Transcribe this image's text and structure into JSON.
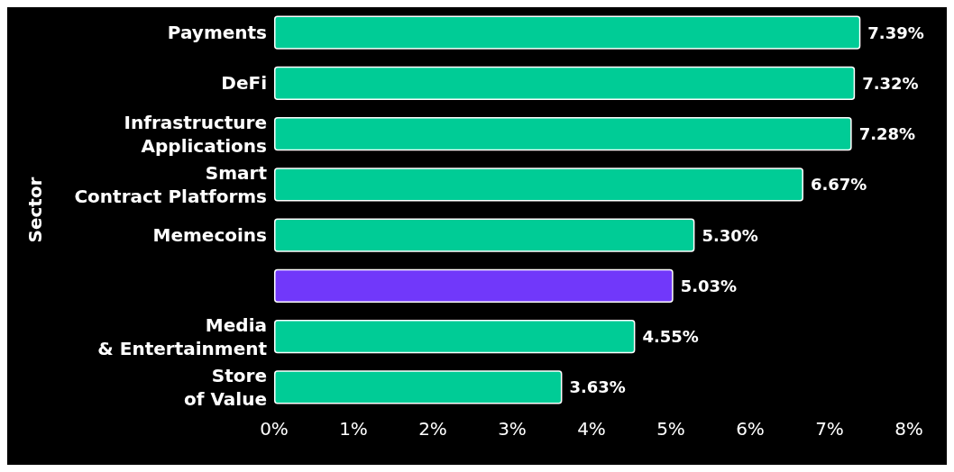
{
  "chart_data": {
    "type": "bar",
    "orientation": "horizontal",
    "ylabel": "Sector",
    "categories": [
      "Payments",
      "DeFi",
      "Infrastructure\nApplications",
      "Smart\nContract Platforms",
      "Memecoins",
      null,
      "Media\n& Entertainment",
      "Store\nof Value"
    ],
    "values": [
      7.39,
      7.32,
      7.28,
      6.67,
      5.3,
      5.03,
      4.55,
      3.63
    ],
    "colors": [
      "#00cc96",
      "#00cc96",
      "#00cc96",
      "#00cc96",
      "#00cc96",
      "#7138fa",
      "#00cc96",
      "#00cc96"
    ],
    "xlim": [
      0,
      8
    ],
    "xticks": [
      {
        "value": 0,
        "label": "0%"
      },
      {
        "value": 1,
        "label": "1%"
      },
      {
        "value": 2,
        "label": "2%"
      },
      {
        "value": 3,
        "label": "3%"
      },
      {
        "value": 4,
        "label": "4%"
      },
      {
        "value": 5,
        "label": "5%"
      },
      {
        "value": 6,
        "label": "6%"
      },
      {
        "value": 7,
        "label": "7%"
      },
      {
        "value": 8,
        "label": "8%"
      }
    ],
    "value_labels": [
      "7.39%",
      "7.32%",
      "7.28%",
      "6.67%",
      "5.30%",
      "5.03%",
      "4.55%",
      "3.63%"
    ],
    "grid": false
  }
}
